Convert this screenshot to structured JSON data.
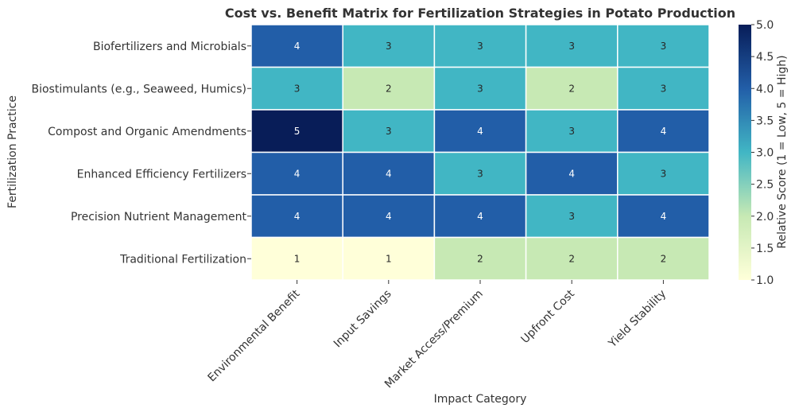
{
  "chart_data": {
    "type": "heatmap",
    "title": "Cost vs. Benefit Matrix for Fertilization Strategies in Potato Production",
    "xlabel": "Impact Category",
    "ylabel": "Fertilization Practice",
    "x_categories": [
      "Environmental Benefit",
      "Input Savings",
      "Market Access/Premium",
      "Upfront Cost",
      "Yield Stability"
    ],
    "y_categories": [
      "Biofertilizers and Microbials",
      "Biostimulants (e.g., Seaweed, Humics)",
      "Compost and Organic Amendments",
      "Enhanced Efficiency Fertilizers",
      "Precision Nutrient Management",
      "Traditional Fertilization"
    ],
    "values": [
      [
        4,
        3,
        3,
        3,
        3
      ],
      [
        3,
        2,
        3,
        2,
        3
      ],
      [
        5,
        3,
        4,
        3,
        4
      ],
      [
        4,
        4,
        3,
        4,
        3
      ],
      [
        4,
        4,
        4,
        3,
        4
      ],
      [
        1,
        1,
        2,
        2,
        2
      ]
    ],
    "colorbar": {
      "label": "Relative Score (1 = Low, 5 = High)",
      "range": [
        1.0,
        5.0
      ],
      "ticks": [
        "1.0",
        "1.5",
        "2.0",
        "2.5",
        "3.0",
        "3.5",
        "4.0",
        "4.5",
        "5.0"
      ],
      "colormap": "YlGnBu",
      "colors": [
        "#ffffd9",
        "#c7e9b4",
        "#41b6c4",
        "#225ea8",
        "#081d58"
      ]
    },
    "grid_line_color": "#ffffff"
  }
}
